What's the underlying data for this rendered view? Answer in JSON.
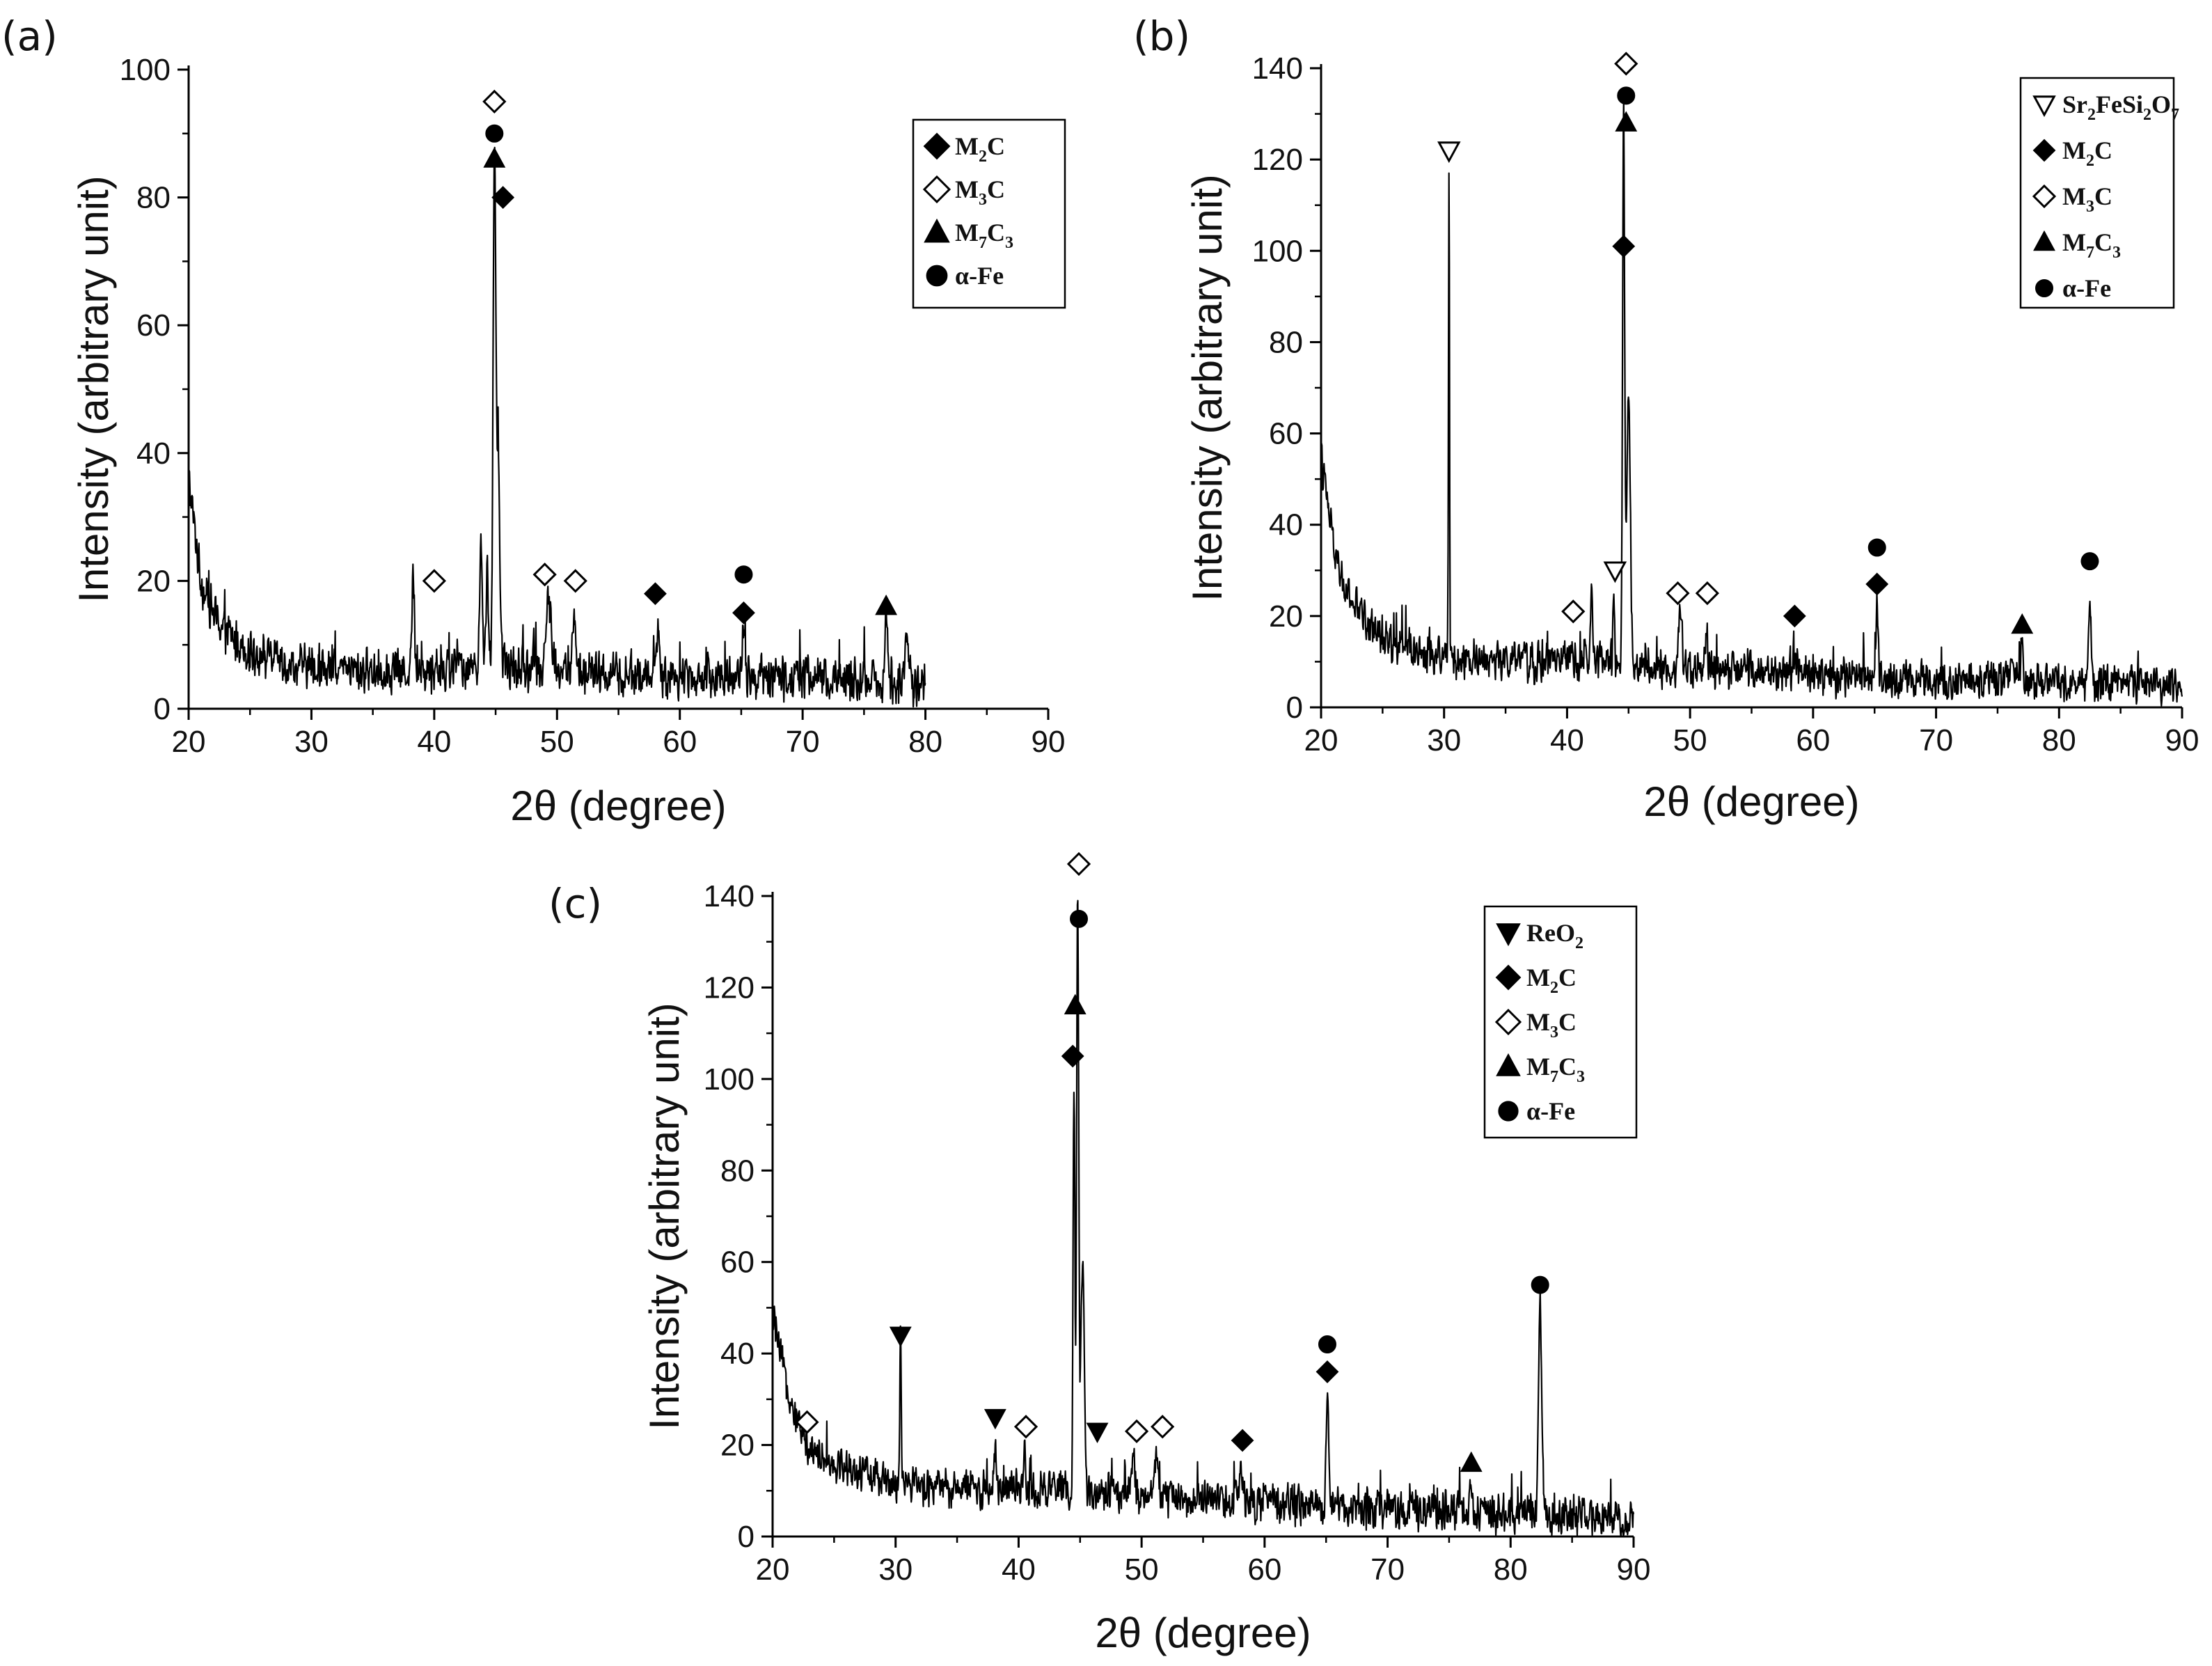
{
  "chart_data": [
    {
      "panel": "(a)",
      "type": "line",
      "title": "",
      "xlabel": "2θ (degree)",
      "ylabel": "Intensity (arbitrary unit)",
      "xlim": [
        20,
        90
      ],
      "ylim": [
        0,
        100
      ],
      "xticks": [
        "20",
        "30",
        "40",
        "50",
        "60",
        "70",
        "80",
        "90"
      ],
      "yticks": [
        "0",
        "20",
        "40",
        "60",
        "80",
        "100"
      ],
      "series": [
        {
          "name": "XRD pattern (a)",
          "x_range": [
            20,
            80
          ],
          "background": [
            [
              20,
              36
            ],
            [
              21,
              20
            ],
            [
              22,
              15
            ],
            [
              23,
              12
            ],
            [
              25,
              9
            ],
            [
              28,
              7
            ],
            [
              32,
              6
            ],
            [
              36,
              6
            ],
            [
              40,
              6
            ],
            [
              44,
              7
            ],
            [
              50,
              6
            ],
            [
              56,
              5
            ],
            [
              62,
              5
            ],
            [
              70,
              5
            ],
            [
              80,
              4
            ]
          ],
          "noise": 4,
          "peaks": [
            [
              38.3,
              14,
              0.15
            ],
            [
              43.8,
              18,
              0.15
            ],
            [
              44.3,
              15,
              0.12
            ],
            [
              44.9,
              80,
              0.15
            ],
            [
              45.2,
              30,
              0.2
            ],
            [
              49.3,
              11,
              0.3
            ],
            [
              51.4,
              10,
              0.15
            ],
            [
              58.2,
              6,
              0.2
            ],
            [
              65.2,
              9,
              0.15
            ],
            [
              76.8,
              11,
              0.15
            ],
            [
              78.5,
              6,
              0.2
            ]
          ]
        }
      ],
      "markers": [
        {
          "symbol": "open-diamond",
          "x": 40.0,
          "y": 20
        },
        {
          "symbol": "open-diamond",
          "x": 44.9,
          "y": 95
        },
        {
          "symbol": "circle",
          "x": 44.9,
          "y": 90
        },
        {
          "symbol": "triangle",
          "x": 44.9,
          "y": 86
        },
        {
          "symbol": "diamond",
          "x": 45.6,
          "y": 80
        },
        {
          "symbol": "open-diamond",
          "x": 49.0,
          "y": 21
        },
        {
          "symbol": "open-diamond",
          "x": 51.5,
          "y": 20
        },
        {
          "symbol": "diamond",
          "x": 58.0,
          "y": 18
        },
        {
          "symbol": "circle",
          "x": 65.2,
          "y": 21
        },
        {
          "symbol": "diamond",
          "x": 65.2,
          "y": 15
        },
        {
          "symbol": "triangle",
          "x": 76.8,
          "y": 16
        }
      ],
      "legend": {
        "position": "top-right",
        "items": [
          {
            "symbol": "diamond",
            "main": "M",
            "sub": "2",
            "rest": "C"
          },
          {
            "symbol": "open-diamond",
            "main": "M",
            "sub": "3",
            "rest": "C"
          },
          {
            "symbol": "triangle",
            "main": "M",
            "sub": "7",
            "rest": "C",
            "sub2": "3"
          },
          {
            "symbol": "circle",
            "main": "α-Fe",
            "sub": "",
            "rest": ""
          }
        ]
      }
    },
    {
      "panel": "(b)",
      "type": "line",
      "title": "",
      "xlabel": "2θ (degree)",
      "ylabel": "Intensity (arbitrary unit)",
      "xlim": [
        20,
        90
      ],
      "ylim": [
        0,
        140
      ],
      "xticks": [
        "20",
        "30",
        "40",
        "50",
        "60",
        "70",
        "80",
        "90"
      ],
      "yticks": [
        "0",
        "20",
        "40",
        "60",
        "80",
        "100",
        "120",
        "140"
      ],
      "series": [
        {
          "name": "XRD pattern (b)",
          "x_range": [
            20,
            90
          ],
          "background": [
            [
              20,
              55
            ],
            [
              21,
              35
            ],
            [
              22,
              25
            ],
            [
              24,
              18
            ],
            [
              26,
              14
            ],
            [
              30,
              11
            ],
            [
              36,
              10
            ],
            [
              42,
              10
            ],
            [
              46,
              9
            ],
            [
              52,
              8
            ],
            [
              60,
              7
            ],
            [
              70,
              6
            ],
            [
              80,
              6
            ],
            [
              90,
              5
            ]
          ],
          "noise": 5,
          "peaks": [
            [
              30.4,
              110,
              0.06
            ],
            [
              42.0,
              20,
              0.1
            ],
            [
              43.8,
              14,
              0.1
            ],
            [
              44.6,
              120,
              0.12
            ],
            [
              45.0,
              60,
              0.2
            ],
            [
              49.2,
              12,
              0.2
            ],
            [
              51.3,
              8,
              0.15
            ],
            [
              58.5,
              6,
              0.2
            ],
            [
              65.2,
              14,
              0.12
            ],
            [
              77.0,
              8,
              0.15
            ],
            [
              82.5,
              18,
              0.15
            ]
          ]
        }
      ],
      "markers": [
        {
          "symbol": "open-triangle-down",
          "x": 30.4,
          "y": 122
        },
        {
          "symbol": "open-diamond",
          "x": 40.5,
          "y": 21
        },
        {
          "symbol": "open-triangle-down",
          "x": 43.9,
          "y": 30
        },
        {
          "symbol": "open-diamond",
          "x": 44.8,
          "y": 141
        },
        {
          "symbol": "circle",
          "x": 44.8,
          "y": 134
        },
        {
          "symbol": "triangle",
          "x": 44.8,
          "y": 128
        },
        {
          "symbol": "diamond",
          "x": 44.6,
          "y": 101
        },
        {
          "symbol": "open-diamond",
          "x": 49.0,
          "y": 25
        },
        {
          "symbol": "open-diamond",
          "x": 51.4,
          "y": 25
        },
        {
          "symbol": "diamond",
          "x": 58.5,
          "y": 20
        },
        {
          "symbol": "circle",
          "x": 65.2,
          "y": 35
        },
        {
          "symbol": "diamond",
          "x": 65.2,
          "y": 27
        },
        {
          "symbol": "triangle",
          "x": 77.0,
          "y": 18
        },
        {
          "symbol": "circle",
          "x": 82.5,
          "y": 32
        }
      ],
      "legend": {
        "position": "top-right",
        "items": [
          {
            "symbol": "open-triangle-down",
            "main": "Sr",
            "sub": "2",
            "rest": "FeSi",
            "sub2": "2",
            "rest2": "O",
            "sub3": "7"
          },
          {
            "symbol": "diamond",
            "main": "M",
            "sub": "2",
            "rest": "C"
          },
          {
            "symbol": "open-diamond",
            "main": "M",
            "sub": "3",
            "rest": "C"
          },
          {
            "symbol": "triangle",
            "main": "M",
            "sub": "7",
            "rest": "C",
            "sub2": "3"
          },
          {
            "symbol": "circle",
            "main": "α-Fe",
            "sub": "",
            "rest": ""
          }
        ]
      }
    },
    {
      "panel": "(c)",
      "type": "line",
      "title": "",
      "xlabel": "2θ (degree)",
      "ylabel": "Intensity (arbitrary unit)",
      "xlim": [
        20,
        90
      ],
      "ylim": [
        0,
        140
      ],
      "xticks": [
        "20",
        "30",
        "40",
        "50",
        "60",
        "70",
        "80",
        "90"
      ],
      "yticks": [
        "0",
        "20",
        "40",
        "60",
        "80",
        "100",
        "120",
        "140"
      ],
      "series": [
        {
          "name": "XRD pattern (c)",
          "x_range": [
            20,
            90
          ],
          "background": [
            [
              20,
              48
            ],
            [
              21,
              35
            ],
            [
              22,
              25
            ],
            [
              23,
              20
            ],
            [
              25,
              16
            ],
            [
              28,
              13
            ],
            [
              32,
              11
            ],
            [
              38,
              10
            ],
            [
              44,
              10
            ],
            [
              50,
              9
            ],
            [
              56,
              8
            ],
            [
              62,
              7
            ],
            [
              70,
              6
            ],
            [
              80,
              5
            ],
            [
              90,
              4
            ]
          ],
          "noise": 5,
          "peaks": [
            [
              30.4,
              30,
              0.08
            ],
            [
              38.1,
              10,
              0.15
            ],
            [
              40.5,
              8,
              0.15
            ],
            [
              44.5,
              90,
              0.1
            ],
            [
              44.8,
              130,
              0.12
            ],
            [
              45.2,
              50,
              0.2
            ],
            [
              49.3,
              10,
              0.2
            ],
            [
              51.2,
              10,
              0.15
            ],
            [
              58.1,
              8,
              0.2
            ],
            [
              65.1,
              24,
              0.15
            ],
            [
              76.8,
              7,
              0.15
            ],
            [
              82.4,
              46,
              0.18
            ]
          ]
        }
      ],
      "markers": [
        {
          "symbol": "open-diamond",
          "x": 22.8,
          "y": 25
        },
        {
          "symbol": "triangle-down",
          "x": 30.4,
          "y": 44
        },
        {
          "symbol": "triangle-down",
          "x": 38.1,
          "y": 26
        },
        {
          "symbol": "open-diamond",
          "x": 40.6,
          "y": 24
        },
        {
          "symbol": "open-diamond",
          "x": 44.9,
          "y": 147
        },
        {
          "symbol": "circle",
          "x": 44.9,
          "y": 135
        },
        {
          "symbol": "triangle",
          "x": 44.6,
          "y": 116
        },
        {
          "symbol": "diamond",
          "x": 44.4,
          "y": 105
        },
        {
          "symbol": "triangle-down",
          "x": 46.4,
          "y": 23
        },
        {
          "symbol": "open-diamond",
          "x": 49.6,
          "y": 23
        },
        {
          "symbol": "open-diamond",
          "x": 51.7,
          "y": 24
        },
        {
          "symbol": "diamond",
          "x": 58.2,
          "y": 21
        },
        {
          "symbol": "circle",
          "x": 65.1,
          "y": 42
        },
        {
          "symbol": "diamond",
          "x": 65.1,
          "y": 36
        },
        {
          "symbol": "triangle",
          "x": 76.8,
          "y": 16
        },
        {
          "symbol": "circle",
          "x": 82.4,
          "y": 55
        }
      ],
      "legend": {
        "position": "top-right",
        "items": [
          {
            "symbol": "triangle-down",
            "main": "ReO",
            "sub": "2",
            "rest": ""
          },
          {
            "symbol": "diamond",
            "main": "M",
            "sub": "2",
            "rest": "C"
          },
          {
            "symbol": "open-diamond",
            "main": "M",
            "sub": "3",
            "rest": "C"
          },
          {
            "symbol": "triangle",
            "main": "M",
            "sub": "7",
            "rest": "C",
            "sub2": "3"
          },
          {
            "symbol": "circle",
            "main": "α-Fe",
            "sub": "",
            "rest": ""
          }
        ]
      }
    }
  ]
}
